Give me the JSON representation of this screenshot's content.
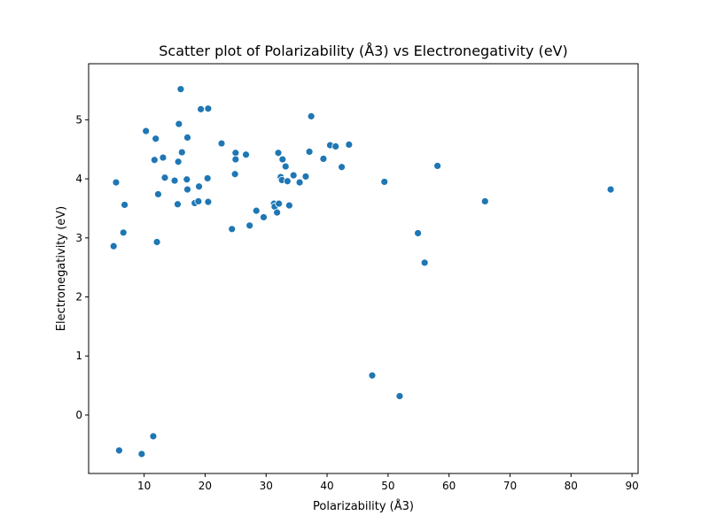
{
  "chart_data": {
    "type": "scatter",
    "title": "Scatter plot of Polarizability (Å3) vs Electronegativity (eV)",
    "xlabel": "Polarizability (Å3)",
    "ylabel": "Electronegativity (eV)",
    "xlim": [
      0.9,
      91.0
    ],
    "ylim": [
      -0.99,
      5.95
    ],
    "xticks": [
      10,
      20,
      30,
      40,
      50,
      60,
      70,
      80,
      90
    ],
    "yticks": [
      0,
      1,
      2,
      3,
      4,
      5
    ],
    "grid": false,
    "color": "#1f77b4",
    "series": [
      {
        "points": [
          [
            5.0,
            2.86
          ],
          [
            5.4,
            3.94
          ],
          [
            5.9,
            -0.6
          ],
          [
            6.6,
            3.09
          ],
          [
            6.8,
            3.56
          ],
          [
            9.6,
            -0.66
          ],
          [
            10.3,
            4.81
          ],
          [
            11.5,
            -0.36
          ],
          [
            11.7,
            4.32
          ],
          [
            11.9,
            4.68
          ],
          [
            12.1,
            2.93
          ],
          [
            12.3,
            3.74
          ],
          [
            13.1,
            4.36
          ],
          [
            13.4,
            4.02
          ],
          [
            15.0,
            3.97
          ],
          [
            15.5,
            3.57
          ],
          [
            15.6,
            4.29
          ],
          [
            15.7,
            4.93
          ],
          [
            16.0,
            5.52
          ],
          [
            16.2,
            4.45
          ],
          [
            17.0,
            3.99
          ],
          [
            17.1,
            4.7
          ],
          [
            17.1,
            3.82
          ],
          [
            18.3,
            3.59
          ],
          [
            18.9,
            3.62
          ],
          [
            19.0,
            3.87
          ],
          [
            19.3,
            5.18
          ],
          [
            20.4,
            4.01
          ],
          [
            20.5,
            3.61
          ],
          [
            20.5,
            5.19
          ],
          [
            22.7,
            4.6
          ],
          [
            24.4,
            3.15
          ],
          [
            24.9,
            4.08
          ],
          [
            25.0,
            4.44
          ],
          [
            25.0,
            4.33
          ],
          [
            26.7,
            4.41
          ],
          [
            27.3,
            3.21
          ],
          [
            28.4,
            3.46
          ],
          [
            29.6,
            3.35
          ],
          [
            31.3,
            3.58
          ],
          [
            31.4,
            3.53
          ],
          [
            31.8,
            3.43
          ],
          [
            32.0,
            4.44
          ],
          [
            32.1,
            3.58
          ],
          [
            32.4,
            4.03
          ],
          [
            32.6,
            3.98
          ],
          [
            32.7,
            4.33
          ],
          [
            33.2,
            4.21
          ],
          [
            33.5,
            3.96
          ],
          [
            33.8,
            3.55
          ],
          [
            34.5,
            4.06
          ],
          [
            35.5,
            3.94
          ],
          [
            36.5,
            4.04
          ],
          [
            37.1,
            4.46
          ],
          [
            37.4,
            5.06
          ],
          [
            39.4,
            4.34
          ],
          [
            40.5,
            4.57
          ],
          [
            41.4,
            4.55
          ],
          [
            42.4,
            4.2
          ],
          [
            43.6,
            4.58
          ],
          [
            47.4,
            0.67
          ],
          [
            49.4,
            3.95
          ],
          [
            51.9,
            0.32
          ],
          [
            54.9,
            3.08
          ],
          [
            56.0,
            2.58
          ],
          [
            58.1,
            4.22
          ],
          [
            65.9,
            3.62
          ],
          [
            86.5,
            3.82
          ]
        ]
      }
    ]
  }
}
